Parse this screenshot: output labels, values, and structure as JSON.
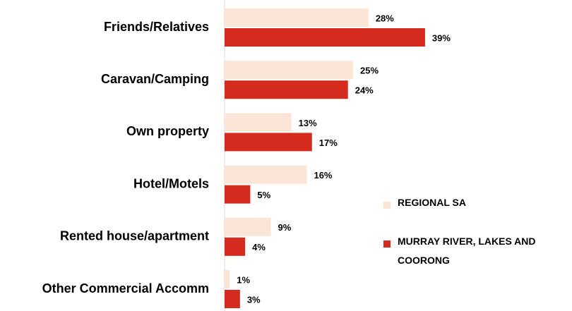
{
  "chart_data": {
    "type": "hbar",
    "categories": [
      "Friends/Relatives",
      "Caravan/Camping",
      "Own property",
      "Hotel/Motels",
      "Rented house/apartment",
      "Other Commercial Accomm"
    ],
    "series": [
      {
        "name": "REGIONAL SA",
        "color": "#fbe5d6",
        "values": [
          28,
          25,
          13,
          16,
          9,
          1
        ],
        "value_labels": [
          "28%",
          "25%",
          "13%",
          "16%",
          "9%",
          "1%"
        ]
      },
      {
        "name": "MURRAY RIVER, LAKES AND COORONG",
        "color": "#d52b1e",
        "values": [
          39,
          24,
          17,
          5,
          4,
          3
        ],
        "value_labels": [
          "39%",
          "24%",
          "17%",
          "5%",
          "4%",
          "3%"
        ]
      }
    ],
    "legend": "right"
  }
}
